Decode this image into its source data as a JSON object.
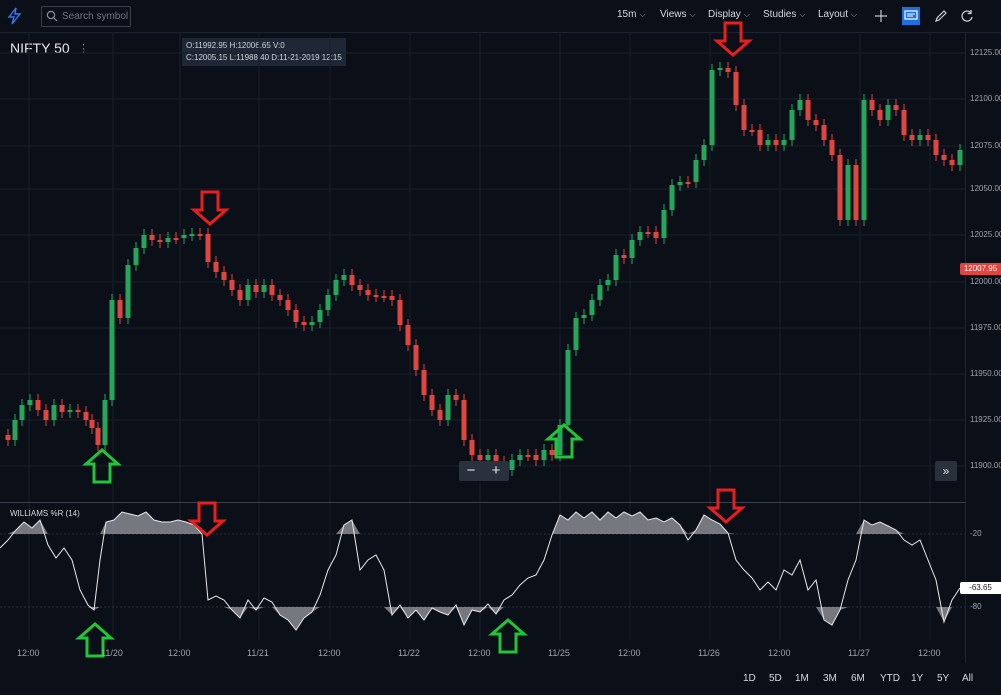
{
  "header": {
    "search_placeholder": "Search symbol",
    "interval_label": "15m",
    "views_label": "Views",
    "display_label": "Display",
    "studies_label": "Studies",
    "layout_label": "Layout"
  },
  "chart": {
    "symbol": "NIFTY 50",
    "ohlc_line1": "O:11992.95  H:12006.65  V:0",
    "ohlc_line2": "C:12005.15  L:11988.40  D:11-21-2019 12:15",
    "last_price": "12007.95",
    "indicator_title": "WILLIAMS %R (14)",
    "indicator_value": "-63.65",
    "price_ticks": [
      "12125.00",
      "12100.00",
      "12075.00",
      "12050.00",
      "12025.00",
      "12000.00",
      "11975.00",
      "11950.00",
      "11925.00",
      "11900.00"
    ],
    "indicator_ticks": [
      "-20",
      "-80"
    ],
    "time_ticks": [
      "12:00",
      "11/20",
      "12:00",
      "11/21",
      "12:00",
      "11/22",
      "12:00",
      "11/25",
      "12:00",
      "11/26",
      "12:00",
      "11/27",
      "12:00"
    ],
    "ranges": [
      "1D",
      "5D",
      "1M",
      "3M",
      "6M",
      "YTD",
      "1Y",
      "5Y",
      "All"
    ]
  },
  "colors": {
    "up": "#26a65b",
    "down": "#e0453f",
    "arrow_up": "#22c43a",
    "arrow_down": "#e81f1f"
  }
}
